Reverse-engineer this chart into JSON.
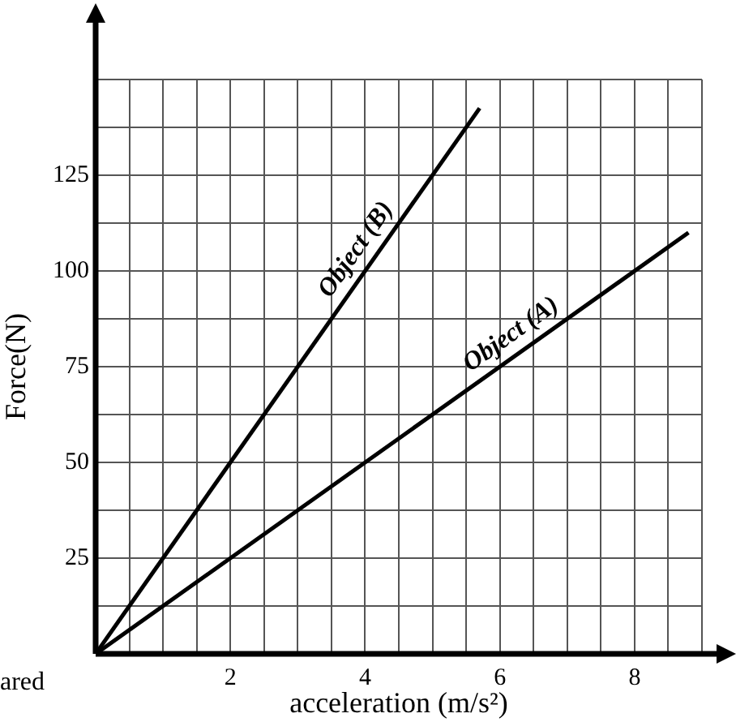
{
  "chart_data": {
    "type": "line",
    "xlabel": "acceleration (m/s²)",
    "ylabel": "Force(N)",
    "xlim": [
      0,
      9
    ],
    "ylim": [
      0,
      150
    ],
    "xticks": [
      {
        "value": 0,
        "label": null
      },
      {
        "value": 0.5,
        "label": null
      },
      {
        "value": 1,
        "label": null
      },
      {
        "value": 1.5,
        "label": null
      },
      2,
      {
        "value": 2.5,
        "label": null
      },
      {
        "value": 3,
        "label": null
      },
      {
        "value": 3.5,
        "label": null
      },
      4,
      {
        "value": 4.5,
        "label": null
      },
      {
        "value": 5,
        "label": null
      },
      {
        "value": 5.5,
        "label": null
      },
      6,
      {
        "value": 6.5,
        "label": null
      },
      {
        "value": 7,
        "label": null
      },
      {
        "value": 7.5,
        "label": null
      },
      8,
      {
        "value": 8.5,
        "label": null
      },
      {
        "value": 9,
        "label": null
      }
    ],
    "yticks": [
      {
        "value": 0,
        "label": null
      },
      {
        "value": 12.5,
        "label": null
      },
      25,
      {
        "value": 37.5,
        "label": null
      },
      50,
      {
        "value": 62.5,
        "label": null
      },
      75,
      {
        "value": 87.5,
        "label": null
      },
      100,
      {
        "value": 112.5,
        "label": null
      },
      125,
      {
        "value": 137.5,
        "label": null
      },
      {
        "value": 150,
        "label": null
      }
    ],
    "grid": true,
    "legend": false,
    "marker": "none",
    "line_style": "solid",
    "series": [
      {
        "name": "Object (B)",
        "color": "#000000",
        "x": [
          0,
          5.7
        ],
        "values": [
          0,
          142.5
        ]
      },
      {
        "name": "Object (A)",
        "color": "#000000",
        "x": [
          0,
          8.8
        ],
        "values": [
          0,
          110
        ]
      }
    ],
    "annotations": [
      "ared"
    ]
  }
}
